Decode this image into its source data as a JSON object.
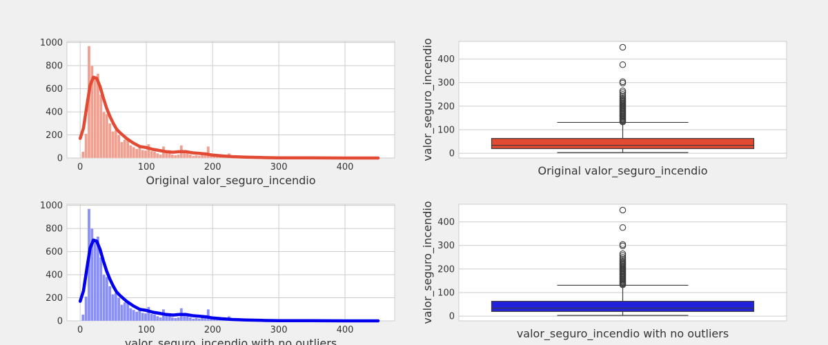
{
  "chart_data": [
    {
      "type": "histogram",
      "xlabel": "Original valor_seguro_incendio",
      "ylabel": "",
      "xlim": [
        -20,
        475
      ],
      "ylim": [
        0,
        1010
      ],
      "xticks": [
        "0",
        "100",
        "200",
        "300",
        "400"
      ],
      "yticks": [
        "0",
        "200",
        "400",
        "600",
        "800",
        "1000"
      ],
      "grid": true,
      "bar_color": "#f0a090",
      "kde_color": "#e24a33",
      "bin_width": 4.5,
      "x": [
        4.5,
        9,
        13.5,
        18,
        22.5,
        27,
        31.5,
        36,
        40.5,
        45,
        49.5,
        54,
        58.5,
        63,
        67.5,
        72,
        76.5,
        81,
        85.5,
        90,
        94.5,
        99,
        103.5,
        108,
        112.5,
        117,
        121.5,
        126,
        130.5,
        135,
        139.5,
        144,
        148.5,
        153,
        157.5,
        162,
        166.5,
        171,
        175.5,
        180,
        184.5,
        189,
        193.5,
        198,
        202.5,
        207,
        211.5,
        216,
        220.5,
        225,
        229.5,
        234,
        238.5,
        243,
        247.5,
        252,
        256.5,
        261,
        265.5,
        270,
        274.5,
        279,
        283.5,
        288,
        292.5,
        297,
        301.5,
        306,
        310.5,
        315,
        319.5,
        324,
        328.5,
        333,
        337.5,
        342,
        346.5,
        351,
        355.5,
        360,
        364.5,
        369,
        373.5,
        378,
        382.5,
        387,
        391.5,
        396,
        400.5,
        405,
        409.5,
        414,
        418.5,
        423,
        427.5,
        432,
        436.5,
        441,
        445.5,
        450
      ],
      "counts": [
        55,
        210,
        970,
        800,
        700,
        730,
        550,
        400,
        380,
        300,
        230,
        240,
        200,
        140,
        160,
        150,
        110,
        95,
        80,
        90,
        70,
        65,
        120,
        60,
        55,
        40,
        30,
        100,
        45,
        40,
        30,
        25,
        30,
        110,
        60,
        45,
        30,
        20,
        25,
        20,
        50,
        35,
        100,
        20,
        15,
        10,
        12,
        8,
        10,
        40,
        8,
        6,
        5,
        5,
        4,
        8,
        4,
        3,
        3,
        3,
        2,
        2,
        2,
        2,
        2,
        3,
        2,
        2,
        1,
        1,
        1,
        1,
        1,
        1,
        1,
        1,
        1,
        0,
        1,
        1,
        1,
        0,
        1,
        1,
        0,
        0,
        0,
        0,
        0,
        0,
        0,
        0,
        0,
        0,
        0,
        0,
        0,
        0,
        0,
        1
      ],
      "kde_x": [
        0,
        5,
        10,
        15,
        20,
        25,
        30,
        35,
        40,
        45,
        50,
        55,
        60,
        70,
        80,
        90,
        100,
        110,
        120,
        130,
        140,
        150,
        160,
        170,
        180,
        190,
        200,
        215,
        230,
        250,
        275,
        300,
        350,
        400,
        450
      ],
      "kde_y": [
        170,
        260,
        450,
        630,
        700,
        690,
        620,
        520,
        430,
        360,
        300,
        250,
        220,
        170,
        130,
        100,
        90,
        75,
        65,
        55,
        50,
        55,
        55,
        45,
        40,
        35,
        25,
        18,
        12,
        8,
        4,
        2,
        1,
        0,
        0
      ]
    },
    {
      "type": "box",
      "xlabel": "Original valor_seguro_incendio",
      "ylabel": "valor_seguro_incendio",
      "ylim": [
        -20,
        475
      ],
      "yticks": [
        "0",
        "100",
        "200",
        "300",
        "400"
      ],
      "grid": true,
      "box_color": "#e24a33",
      "q1": 20,
      "median": 34,
      "q3": 63,
      "whisker_low": 3,
      "whisker_high": 131,
      "outliers": [
        133,
        137,
        141,
        145,
        149,
        153,
        157,
        161,
        165,
        169,
        173,
        177,
        181,
        185,
        189,
        193,
        197,
        201,
        205,
        209,
        213,
        217,
        221,
        225,
        230,
        236,
        243,
        250,
        258,
        265,
        298,
        304,
        376,
        450
      ]
    },
    {
      "type": "histogram",
      "xlabel": "valor_seguro_incendio with no outliers",
      "ylabel": "",
      "xlim": [
        -20,
        475
      ],
      "ylim": [
        0,
        1010
      ],
      "xticks": [
        "0",
        "100",
        "200",
        "300",
        "400"
      ],
      "yticks": [
        "0",
        "200",
        "400",
        "600",
        "800",
        "1000"
      ],
      "grid": true,
      "bar_color": "#8a90f5",
      "kde_color": "#0000ee",
      "bin_width": 4.5,
      "x": [
        4.5,
        9,
        13.5,
        18,
        22.5,
        27,
        31.5,
        36,
        40.5,
        45,
        49.5,
        54,
        58.5,
        63,
        67.5,
        72,
        76.5,
        81,
        85.5,
        90,
        94.5,
        99,
        103.5,
        108,
        112.5,
        117,
        121.5,
        126,
        130.5,
        135,
        139.5,
        144,
        148.5,
        153,
        157.5,
        162,
        166.5,
        171,
        175.5,
        180,
        184.5,
        189,
        193.5,
        198,
        202.5,
        207,
        211.5,
        216,
        220.5,
        225,
        229.5,
        234,
        238.5,
        243,
        247.5,
        252,
        256.5,
        261,
        265.5,
        270,
        274.5,
        279,
        283.5,
        288,
        292.5,
        297,
        301.5,
        306,
        310.5,
        315,
        319.5,
        324,
        328.5,
        333,
        337.5,
        342,
        346.5,
        351,
        355.5,
        360,
        364.5,
        369,
        373.5,
        378,
        382.5,
        387,
        391.5,
        396,
        400.5,
        405,
        409.5,
        414,
        418.5,
        423,
        427.5,
        432,
        436.5,
        441,
        445.5,
        450
      ],
      "counts": [
        55,
        210,
        970,
        800,
        700,
        730,
        550,
        400,
        380,
        300,
        230,
        240,
        200,
        140,
        160,
        150,
        110,
        95,
        80,
        90,
        70,
        65,
        120,
        60,
        55,
        40,
        30,
        100,
        45,
        40,
        30,
        25,
        30,
        110,
        60,
        45,
        30,
        20,
        25,
        20,
        50,
        35,
        100,
        20,
        15,
        10,
        12,
        8,
        10,
        40,
        8,
        6,
        5,
        5,
        4,
        8,
        4,
        3,
        3,
        3,
        2,
        2,
        2,
        2,
        2,
        3,
        2,
        2,
        1,
        1,
        1,
        1,
        1,
        1,
        1,
        1,
        1,
        0,
        1,
        1,
        1,
        0,
        1,
        1,
        0,
        0,
        0,
        0,
        0,
        0,
        0,
        0,
        0,
        0,
        0,
        0,
        0,
        0,
        0,
        1
      ],
      "kde_x": [
        0,
        5,
        10,
        15,
        20,
        25,
        30,
        35,
        40,
        45,
        50,
        55,
        60,
        70,
        80,
        90,
        100,
        110,
        120,
        130,
        140,
        150,
        160,
        170,
        180,
        190,
        200,
        215,
        230,
        250,
        275,
        300,
        350,
        400,
        450
      ],
      "kde_y": [
        170,
        260,
        450,
        630,
        700,
        690,
        620,
        520,
        430,
        360,
        300,
        250,
        220,
        170,
        130,
        100,
        90,
        75,
        65,
        55,
        50,
        55,
        55,
        45,
        40,
        35,
        25,
        18,
        12,
        8,
        4,
        2,
        1,
        0,
        0
      ]
    },
    {
      "type": "box",
      "xlabel": "valor_seguro_incendio with no outliers",
      "ylabel": "valor_seguro_incendio",
      "ylim": [
        -20,
        475
      ],
      "yticks": [
        "0",
        "100",
        "200",
        "300",
        "400"
      ],
      "grid": true,
      "box_color": "#2222dd",
      "q1": 20,
      "median": 34,
      "q3": 63,
      "whisker_low": 3,
      "whisker_high": 131,
      "outliers": [
        133,
        137,
        141,
        145,
        149,
        153,
        157,
        161,
        165,
        169,
        173,
        177,
        181,
        185,
        189,
        193,
        197,
        201,
        205,
        209,
        213,
        217,
        221,
        225,
        230,
        236,
        243,
        250,
        258,
        265,
        298,
        304,
        376,
        450
      ]
    }
  ]
}
